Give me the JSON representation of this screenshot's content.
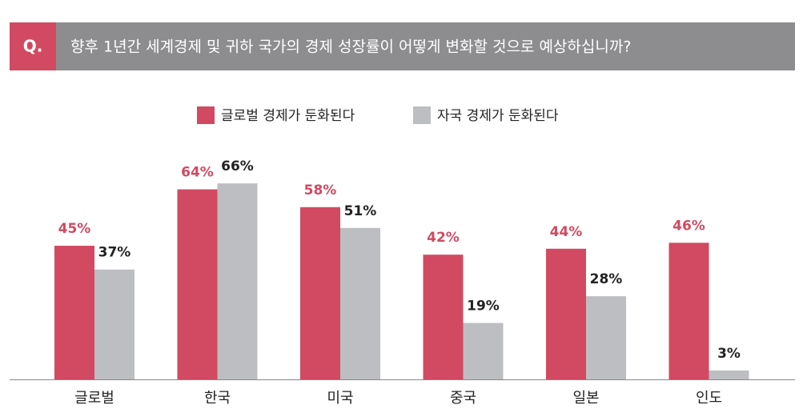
{
  "chart_data": {
    "type": "bar",
    "question_label": "Q.",
    "title": "향후 1년간 세계경제 및 귀하 국가의 경제 성장률이 어떻게 변화할 것으로 예상하십니까?",
    "categories": [
      "글로벌",
      "한국",
      "미국",
      "중국",
      "일본",
      "인도"
    ],
    "series": [
      {
        "name": "글로벌 경제가 둔화된다",
        "color": "#d14a62",
        "label_color": "#d14a62",
        "values": [
          45,
          64,
          58,
          42,
          44,
          46
        ],
        "value_labels": [
          "45%",
          "64%",
          "58%",
          "42%",
          "44%",
          "46%"
        ]
      },
      {
        "name": "자국 경제가 둔화된다",
        "color": "#bdbec2",
        "label_color": "#222222",
        "values": [
          37,
          66,
          51,
          19,
          28,
          3
        ],
        "value_labels": [
          "37%",
          "66%",
          "51%",
          "19%",
          "28%",
          "3%"
        ]
      }
    ],
    "legend": "top",
    "grid": false
  }
}
